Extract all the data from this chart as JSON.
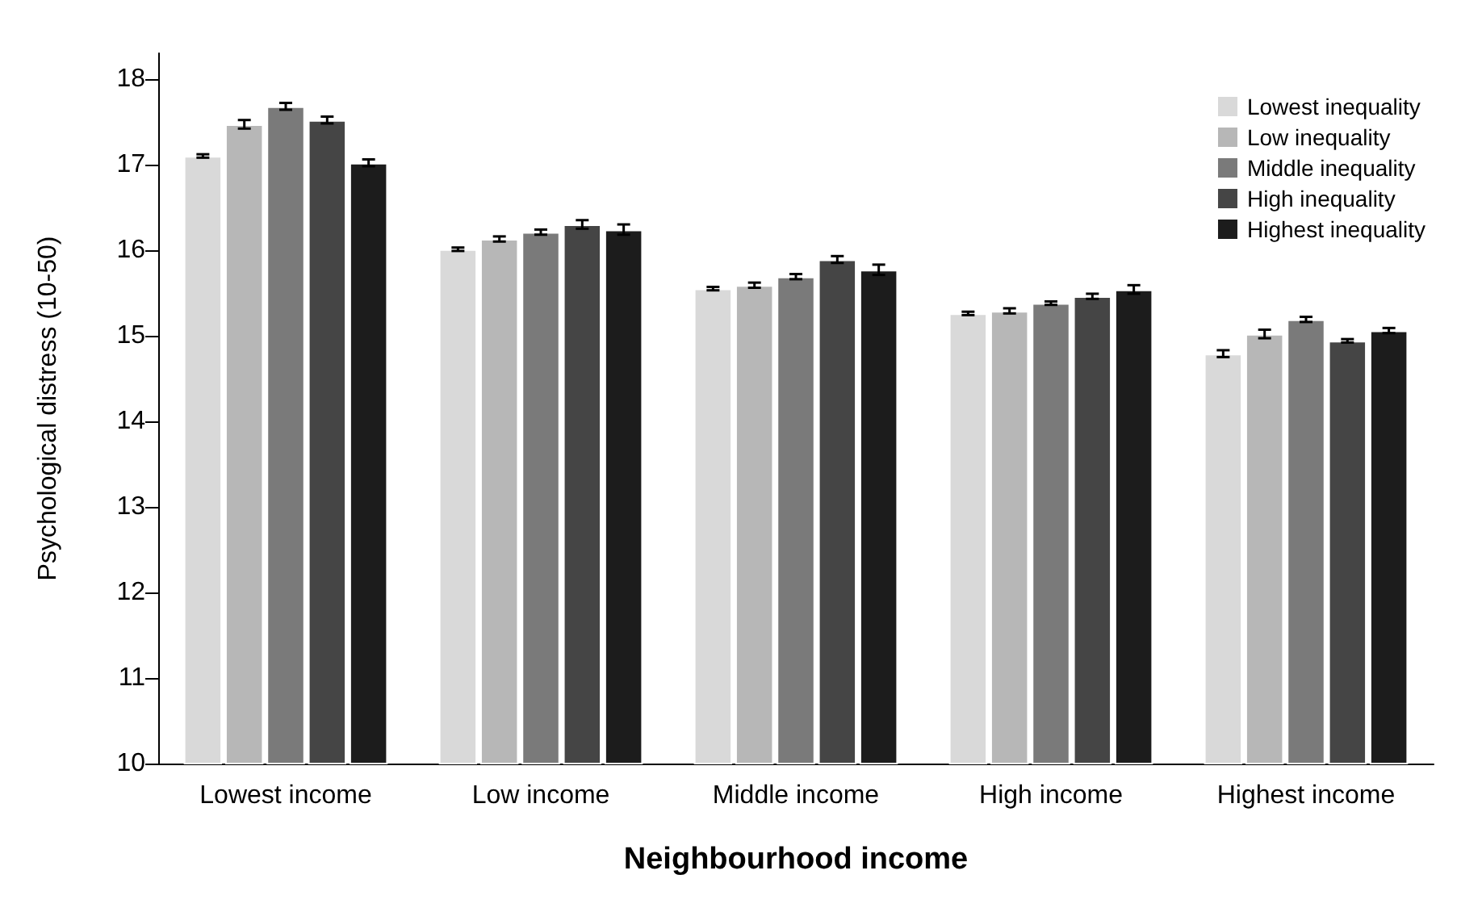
{
  "chart_data": {
    "type": "bar",
    "xlabel": "Neighbourhood income",
    "ylabel": "Psychological distress (10-50)",
    "categories": [
      "Lowest income",
      "Low income",
      "Middle income",
      "High income",
      "Highest income"
    ],
    "series": [
      {
        "name": "Lowest inequality",
        "color": "#d9d9d9",
        "values": [
          17.1,
          16.01,
          15.55,
          15.26,
          14.79
        ],
        "errors": [
          0.02,
          0.02,
          0.02,
          0.02,
          0.04
        ]
      },
      {
        "name": "Low inequality",
        "color": "#b7b7b7",
        "values": [
          17.47,
          16.13,
          15.59,
          15.29,
          15.02
        ],
        "errors": [
          0.05,
          0.03,
          0.03,
          0.03,
          0.05
        ]
      },
      {
        "name": "Middle inequality",
        "color": "#7a7a7a",
        "values": [
          17.68,
          16.21,
          15.69,
          15.38,
          15.19
        ],
        "errors": [
          0.04,
          0.03,
          0.03,
          0.02,
          0.03
        ]
      },
      {
        "name": "High inequality",
        "color": "#454545",
        "values": [
          17.52,
          16.3,
          15.89,
          15.46,
          14.94
        ],
        "errors": [
          0.04,
          0.05,
          0.04,
          0.03,
          0.02
        ]
      },
      {
        "name": "Highest inequality",
        "color": "#1c1c1c",
        "values": [
          17.02,
          16.24,
          15.77,
          15.54,
          15.06
        ],
        "errors": [
          0.04,
          0.06,
          0.06,
          0.05,
          0.03
        ]
      }
    ],
    "ylim": [
      10,
      18.3
    ],
    "yticks": [
      10,
      11,
      12,
      13,
      14,
      15,
      16,
      17,
      18
    ],
    "grid": false,
    "legend": "top right"
  }
}
